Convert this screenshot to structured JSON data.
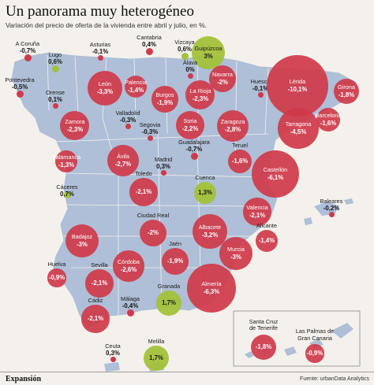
{
  "title": "Un panorama muy heterogéneo",
  "subtitle": "Variación del precio de oferta de la vivienda entre abril y julio, en %.",
  "source": "Fuente: urbanData Analytics",
  "logo": "Expansión",
  "colors": {
    "background": "#f4f1ec",
    "land": "#aebfd7",
    "land_stroke": "#f4f1ec",
    "negative": "#cf3a4a",
    "positive": "#a2c23a"
  },
  "cities": [
    {
      "name": "A Coruña",
      "value": "-0,7%",
      "n": -0.7
    },
    {
      "name": "Lugo",
      "value": "0,6%",
      "n": 0.6
    },
    {
      "name": "Asturias",
      "value": "-0,1%",
      "n": -0.1
    },
    {
      "name": "Cantabria",
      "value": "0,4%",
      "n": 0.4
    },
    {
      "name": "Vizcaya",
      "value": "0,6%",
      "n": 0.6
    },
    {
      "name": "Guipúzcoa",
      "value": "3%",
      "n": 3.0
    },
    {
      "name": "Pontevedra",
      "value": "-0,5%",
      "n": -0.5
    },
    {
      "name": "Orense",
      "value": "0,1%",
      "n": 0.1
    },
    {
      "name": "León",
      "value": "-3,3%",
      "n": -3.3
    },
    {
      "name": "Palencia",
      "value": "-1,4%",
      "n": -1.4
    },
    {
      "name": "Burgos",
      "value": "-1,9%",
      "n": -1.9
    },
    {
      "name": "Álava",
      "value": "0%",
      "n": 0.0
    },
    {
      "name": "La Rioja",
      "value": "-2,3%",
      "n": -2.3
    },
    {
      "name": "Navarra",
      "value": "-2%",
      "n": -2.0
    },
    {
      "name": "Huesca",
      "value": "-0,1%",
      "n": -0.1
    },
    {
      "name": "Lérida",
      "value": "-10,1%",
      "n": -10.1
    },
    {
      "name": "Girona",
      "value": "-1,8%",
      "n": -1.8
    },
    {
      "name": "Zamora",
      "value": "-2,3%",
      "n": -2.3
    },
    {
      "name": "Valladolid",
      "value": "-0,3%",
      "n": -0.3
    },
    {
      "name": "Soria",
      "value": "-2,2%",
      "n": -2.2
    },
    {
      "name": "Zaragoza",
      "value": "-2,8%",
      "n": -2.8
    },
    {
      "name": "Tarragona",
      "value": "-4,5%",
      "n": -4.5
    },
    {
      "name": "Barcelona",
      "value": "-1,6%",
      "n": -1.6
    },
    {
      "name": "Salamanca",
      "value": "-1,3%",
      "n": -1.3
    },
    {
      "name": "Segovia",
      "value": "-0,3%",
      "n": -0.3
    },
    {
      "name": "Ávila",
      "value": "-2,7%",
      "n": -2.7
    },
    {
      "name": "Guadalajara",
      "value": "-0,7%",
      "n": -0.7
    },
    {
      "name": "Teruel",
      "value": "-1,6%",
      "n": -1.6
    },
    {
      "name": "Madrid",
      "value": "0,3%",
      "n": 0.3
    },
    {
      "name": "Castellón",
      "value": "-6,1%",
      "n": -6.1
    },
    {
      "name": "Cáceres",
      "value": "0,7%",
      "n": 0.7
    },
    {
      "name": "Toledo",
      "value": "-2,1%",
      "n": -2.1
    },
    {
      "name": "Cuenca",
      "value": "1,3%",
      "n": 1.3
    },
    {
      "name": "Baleares",
      "value": "-0,2%",
      "n": -0.2
    },
    {
      "name": "Valencia",
      "value": "-2,1%",
      "n": -2.1
    },
    {
      "name": "Ciudad Real",
      "value": "-2%",
      "n": -2.0
    },
    {
      "name": "Badajoz",
      "value": "-3%",
      "n": -3.0
    },
    {
      "name": "Albacete",
      "value": "-3,2%",
      "n": -3.2
    },
    {
      "name": "Alicante",
      "value": "-1,4%",
      "n": -1.4
    },
    {
      "name": "Jaén",
      "value": "-1,9%",
      "n": -1.9
    },
    {
      "name": "Córdoba",
      "value": "-2,6%",
      "n": -2.6
    },
    {
      "name": "Murcia",
      "value": "-3%",
      "n": -3.0
    },
    {
      "name": "Huelva",
      "value": "-0,9%",
      "n": -0.9
    },
    {
      "name": "Sevilla",
      "value": "-2,1%",
      "n": -2.1
    },
    {
      "name": "Almería",
      "value": "-6,3%",
      "n": -6.3
    },
    {
      "name": "Granada",
      "value": "1,7%",
      "n": 1.7
    },
    {
      "name": "Cádiz",
      "value": "-2,1%",
      "n": -2.1
    },
    {
      "name": "Málaga",
      "value": "-0,4%",
      "n": -0.4
    },
    {
      "name": "Santa Cruz de Tenerife",
      "value": "-1,8%",
      "n": -1.8
    },
    {
      "name": "Las Palmas de Gran Canaria",
      "value": "-0,9%",
      "n": -0.9
    },
    {
      "name": "Ceuta",
      "value": "0,3%",
      "n": 0.3
    },
    {
      "name": "Melilla",
      "value": "1,7%",
      "n": 1.7
    }
  ]
}
